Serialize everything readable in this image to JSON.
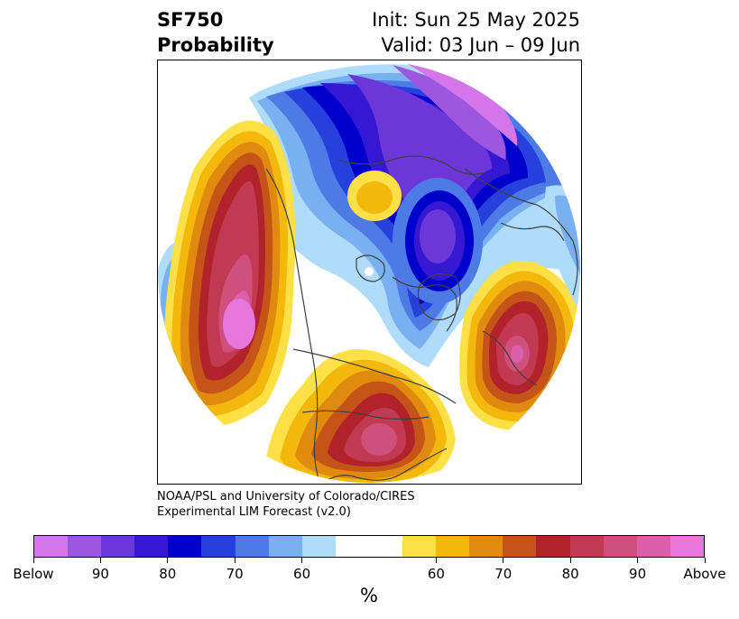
{
  "header": {
    "title_line1": "SF750",
    "title_line2": "Probability",
    "init_text": "Init: Sun 25 May 2025",
    "valid_text": "Valid: 03 Jun – 09 Jun"
  },
  "credit": {
    "line1": "NOAA/PSL and University of Colorado/CIRES",
    "line2": "Experimental LIM Forecast (v2.0)"
  },
  "colorbar": {
    "unit": "%",
    "tick_labels": [
      "Below",
      "90",
      "80",
      "70",
      "60",
      "60",
      "70",
      "80",
      "90",
      "Above"
    ],
    "below_colors": [
      "#d575ea",
      "#9d56e0",
      "#6b37d8",
      "#3718d2",
      "#0000cd",
      "#2540dc",
      "#4e7ae6",
      "#78b0f2",
      "#afdcfb"
    ],
    "neutral_color": "#ffffff",
    "above_colors": [
      "#fde045",
      "#f4b70b",
      "#e08a0e",
      "#c55418",
      "#b2222a",
      "#c23a52",
      "#cf4f7d",
      "#db5fab",
      "#e877dc"
    ]
  },
  "map": {
    "projection": "polar stereographic, North Pole centered",
    "anomalies": [
      {
        "region": "North Pacific / Gulf of Alaska",
        "sign": "above",
        "peak_level": "Above"
      },
      {
        "region": "Eastern North America / Atlantic seaboard",
        "sign": "above",
        "peak_level": "90"
      },
      {
        "region": "Western Europe",
        "sign": "above",
        "peak_level": "90"
      },
      {
        "region": "Eastern Siberia / Arctic rim",
        "sign": "above",
        "peak_level": "70"
      },
      {
        "region": "Arctic Ocean / Barents Sea",
        "sign": "below",
        "peak_level": "Below"
      },
      {
        "region": "Central Asia / Russia",
        "sign": "below",
        "peak_level": "80"
      },
      {
        "region": "Canadian Arctic",
        "sign": "below",
        "peak_level": "70"
      },
      {
        "region": "Western Canada / NW Pacific coast",
        "sign": "below",
        "peak_level": "60"
      }
    ]
  }
}
